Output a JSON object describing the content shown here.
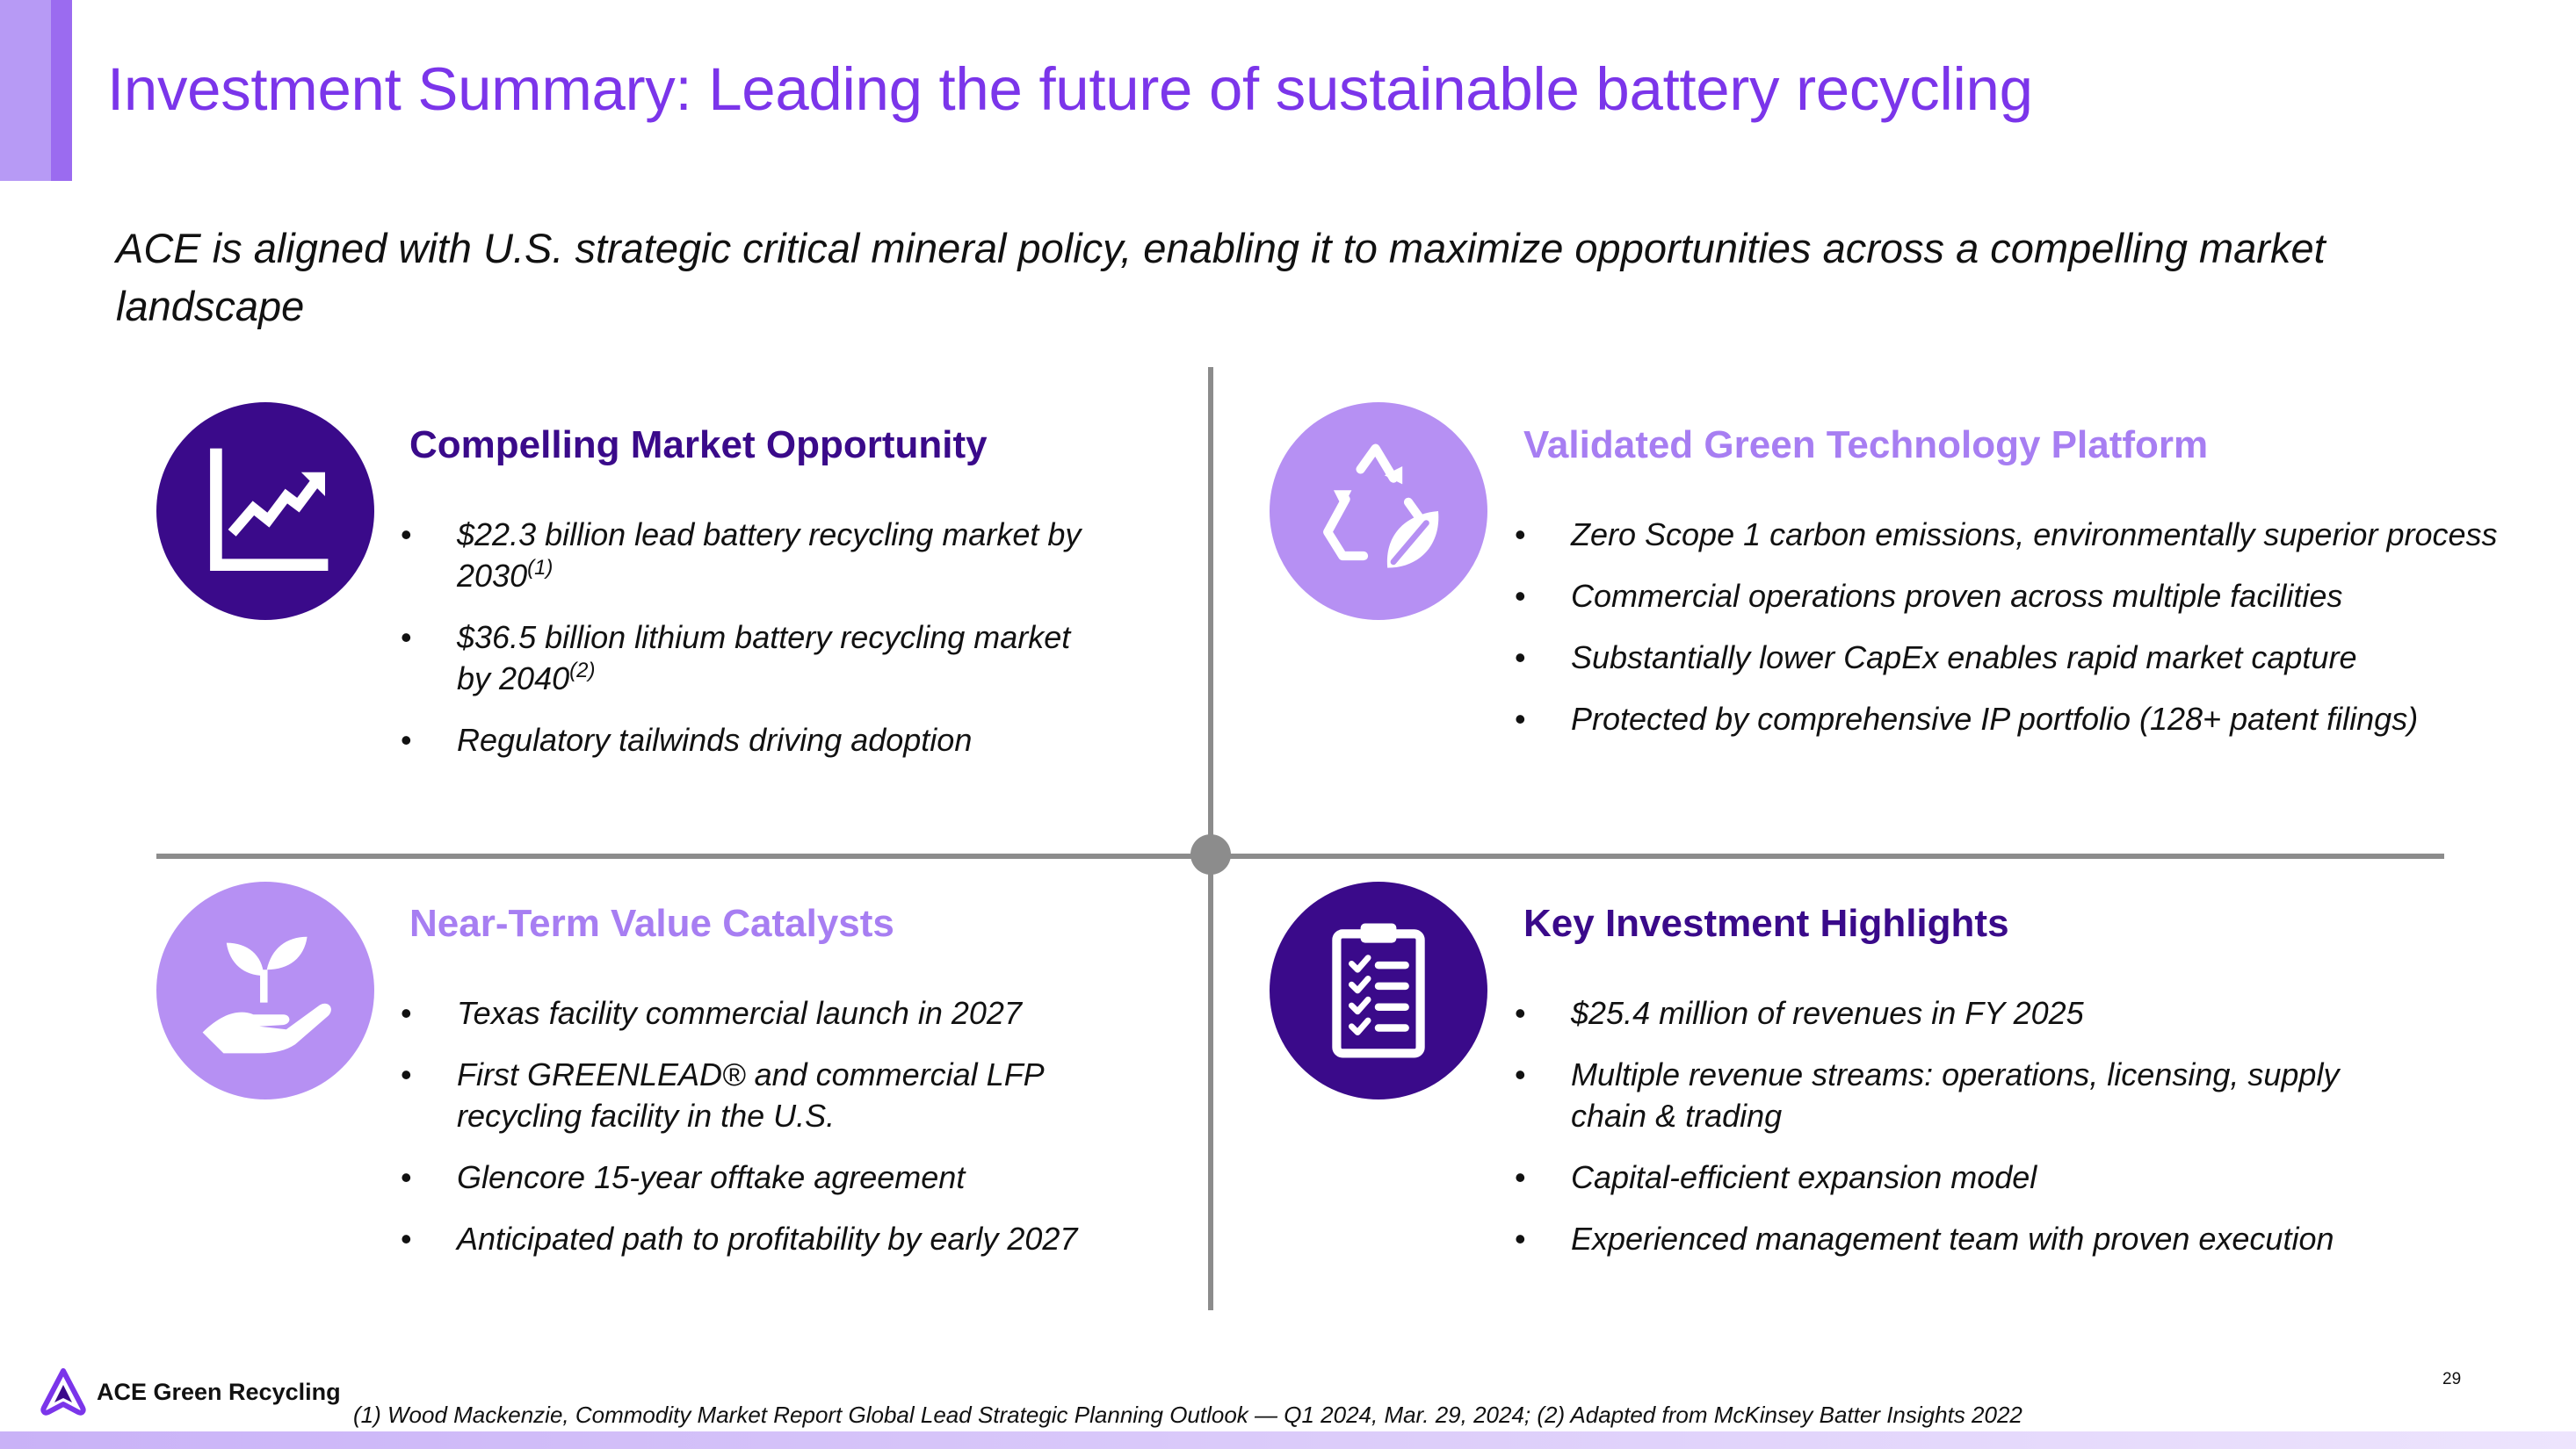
{
  "header": {
    "title": "Investment Summary: Leading the future of sustainable battery recycling",
    "subtitle": "ACE is aligned with U.S. strategic critical mineral policy, enabling it to maximize opportunities across a compelling market landscape"
  },
  "quadrants": {
    "market": {
      "icon": "growth-chart-icon",
      "title": "Compelling Market Opportunity",
      "bullets": [
        {
          "text": "$22.3 billion lead battery recycling market by 2030",
          "note": "(1)"
        },
        {
          "text": "$36.5 billion lithium battery recycling market by 2040",
          "note": "(2)"
        },
        {
          "text": "Regulatory tailwinds driving adoption"
        }
      ]
    },
    "technology": {
      "icon": "recycle-leaf-icon",
      "title": "Validated Green Technology Platform",
      "bullets": [
        {
          "text": "Zero Scope 1 carbon emissions, environmentally superior process"
        },
        {
          "text": "Commercial operations proven across multiple facilities"
        },
        {
          "text": "Substantially lower CapEx enables rapid market capture"
        },
        {
          "text": "Protected by comprehensive IP portfolio (128+ patent filings)"
        }
      ]
    },
    "catalysts": {
      "icon": "hand-sprout-icon",
      "title": "Near-Term Value Catalysts",
      "bullets": [
        {
          "text": "Texas facility commercial launch in 2027"
        },
        {
          "text": "First GREENLEAD® and commercial LFP recycling facility in the U.S."
        },
        {
          "text": "Glencore 15-year offtake agreement"
        },
        {
          "text": "Anticipated path to profitability by early 2027"
        }
      ]
    },
    "highlights": {
      "icon": "clipboard-checklist-icon",
      "title": "Key Investment Highlights",
      "bullets": [
        {
          "text": "$25.4 million of revenues in FY 2025"
        },
        {
          "text": "Multiple revenue streams: operations, licensing, supply chain & trading"
        },
        {
          "text": "Capital-efficient expansion model"
        },
        {
          "text": "Experienced management team with proven execution"
        }
      ]
    }
  },
  "footer": {
    "logo_text": "ACE Green Recycling",
    "footnote": "(1) Wood Mackenzie, Commodity Market Report Global Lead Strategic Planning Outlook — Q1 2024, Mar. 29, 2024; (2) Adapted from McKinsey Batter Insights 2022",
    "page_number": "29"
  },
  "colors": {
    "title": "#7b35ea",
    "dark_purple": "#3a0a8a",
    "light_purple": "#b690f3",
    "divider": "#8c8c8c"
  }
}
